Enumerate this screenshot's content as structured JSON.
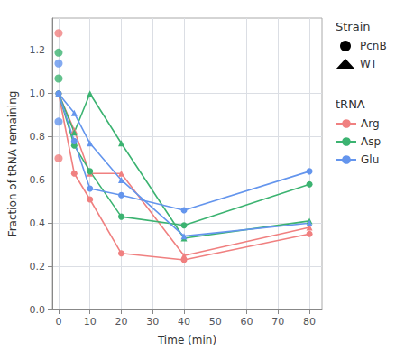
{
  "chart_data": {
    "type": "line",
    "xlabel": "Time (min)",
    "ylabel": "Fraction of tRNA remaining",
    "xlim": [
      -2,
      84
    ],
    "ylim": [
      0.0,
      1.35
    ],
    "xticks": [
      0,
      10,
      20,
      30,
      40,
      50,
      60,
      70,
      80
    ],
    "yticks": [
      {
        "value": 0.0,
        "label": "0.0"
      },
      0.2,
      0.4,
      0.6,
      0.8,
      {
        "value": 1.0,
        "label": "1.0"
      },
      1.2
    ],
    "grid": true,
    "legend": "right",
    "legends": [
      {
        "title": "Strain",
        "entries": [
          {
            "name": "PcnB",
            "color": "#000000",
            "marker": "circle",
            "line_style": "none"
          },
          {
            "name": "WT",
            "color": "#000000",
            "marker": "triangle",
            "line_style": "none"
          }
        ]
      },
      {
        "title": "tRNA",
        "entries": [
          {
            "name": "Arg",
            "color": "#F08080",
            "marker": "circle",
            "line_style": "solid"
          },
          {
            "name": "Asp",
            "color": "#3CB371",
            "marker": "circle",
            "line_style": "solid"
          },
          {
            "name": "Glu",
            "color": "#6495ED",
            "marker": "circle",
            "line_style": "solid"
          }
        ]
      }
    ],
    "series": [
      {
        "trna": "Arg",
        "strain": "PcnB",
        "type": "line",
        "marker": "circle",
        "color": "#F08080",
        "x": [
          0,
          5,
          10,
          20,
          40,
          80
        ],
        "values": [
          1.0,
          0.63,
          0.51,
          0.26,
          0.23,
          0.35
        ]
      },
      {
        "trna": "Arg",
        "strain": "PcnB",
        "type": "scatter",
        "marker": "circle",
        "color": "#F08080",
        "x": [
          0,
          0
        ],
        "values": [
          1.28,
          0.7
        ]
      },
      {
        "trna": "Arg",
        "strain": "WT",
        "type": "line",
        "marker": "triangle",
        "color": "#F08080",
        "x": [
          0,
          5,
          10,
          20,
          40,
          80
        ],
        "values": [
          1.0,
          0.83,
          0.63,
          0.63,
          0.25,
          0.38
        ]
      },
      {
        "trna": "Asp",
        "strain": "PcnB",
        "type": "line",
        "marker": "circle",
        "color": "#3CB371",
        "x": [
          0,
          5,
          10,
          20,
          40,
          80
        ],
        "values": [
          1.0,
          0.76,
          0.64,
          0.43,
          0.39,
          0.58
        ]
      },
      {
        "trna": "Asp",
        "strain": "PcnB",
        "type": "scatter",
        "marker": "circle",
        "color": "#3CB371",
        "x": [
          0,
          0
        ],
        "values": [
          1.19,
          1.07
        ]
      },
      {
        "trna": "Asp",
        "strain": "WT",
        "type": "line",
        "marker": "triangle",
        "color": "#3CB371",
        "x": [
          0,
          5,
          10,
          20,
          40,
          80
        ],
        "values": [
          1.0,
          0.82,
          1.0,
          0.77,
          0.33,
          0.41
        ]
      },
      {
        "trna": "Glu",
        "strain": "PcnB",
        "type": "line",
        "marker": "circle",
        "color": "#6495ED",
        "x": [
          0,
          5,
          10,
          20,
          40,
          80
        ],
        "values": [
          1.0,
          0.78,
          0.56,
          0.53,
          0.46,
          0.64
        ]
      },
      {
        "trna": "Glu",
        "strain": "PcnB",
        "type": "scatter",
        "marker": "circle",
        "color": "#6495ED",
        "x": [
          0,
          0
        ],
        "values": [
          1.14,
          0.87
        ]
      },
      {
        "trna": "Glu",
        "strain": "WT",
        "type": "line",
        "marker": "triangle",
        "color": "#6495ED",
        "x": [
          0,
          5,
          10,
          20,
          40,
          80
        ],
        "values": [
          1.0,
          0.91,
          0.77,
          0.6,
          0.34,
          0.4
        ]
      }
    ]
  }
}
